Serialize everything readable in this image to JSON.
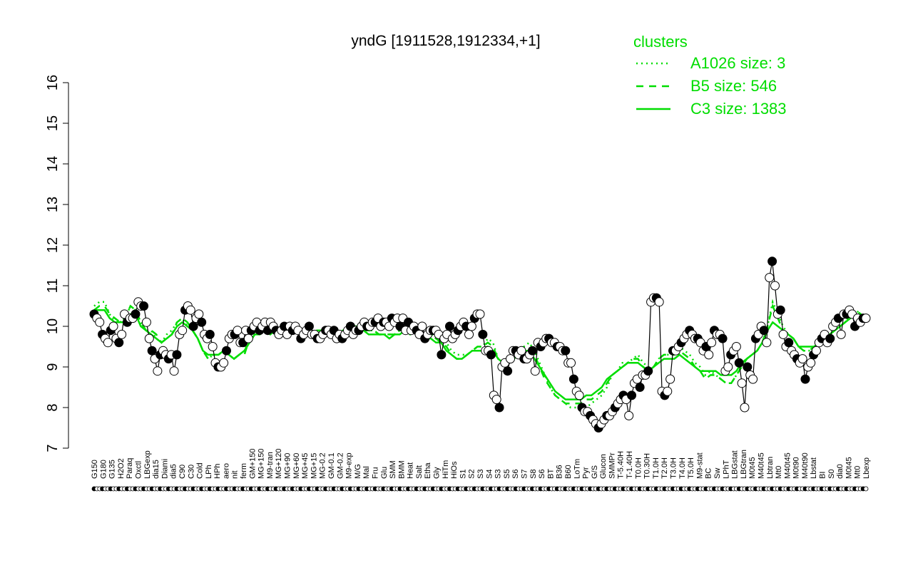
{
  "chart_data": {
    "type": "line",
    "title": "yndG [1911528,1912334,+1]",
    "xlabel": "",
    "ylabel": "",
    "ylim": [
      7,
      16
    ],
    "yticks": [
      7,
      8,
      9,
      10,
      11,
      12,
      13,
      14,
      15,
      16
    ],
    "grid": false,
    "legend": {
      "title": "clusters",
      "placement": "top-right",
      "entries": [
        {
          "label": "A1026 size: 3",
          "style": "dotted"
        },
        {
          "label": "B5 size: 546",
          "style": "dashed"
        },
        {
          "label": "C3 size: 1383",
          "style": "solid"
        }
      ]
    },
    "x_tick_labels": [
      "G150",
      "G180",
      "G135",
      "H2O2",
      "Paraq",
      "Oxctl",
      "LBGexp",
      "dia15",
      "Diami",
      "dia5",
      "C90",
      "C30",
      "Cold",
      "LPh",
      "HPh",
      "aero",
      "nit",
      "ferm",
      "GM+150",
      "MG+150",
      "M9-tran",
      "MG+120",
      "MG+90",
      "MG+60",
      "MG+45",
      "MG+15",
      "MG-0.2",
      "GM-0.1",
      "GM-0.2",
      "M9-exp",
      "M/G",
      "Mal",
      "Fru",
      "Glu",
      "SMM",
      "BMM",
      "Heat",
      "Salt",
      "Etha",
      "Gly",
      "HiTm",
      "HiOs",
      "S1",
      "S2",
      "S3",
      "S4",
      "S3",
      "S5",
      "S6",
      "S7",
      "S8",
      "S6",
      "BT",
      "B36",
      "B60",
      "LoTm",
      "Pyr",
      "G/S",
      "Glucon",
      "SMMPr",
      "T-5.40H",
      "T-1.40H",
      "T0.0H",
      "T0.30H",
      "T1.0H",
      "T2.0H",
      "T3.0H",
      "T4.0H",
      "T5.0H",
      "M9-stat",
      "BC",
      "Sw",
      "LPhT",
      "LBGstat",
      "LBGtran",
      "M0t45",
      "M40t45",
      "Lbtran",
      "Mt0",
      "M40t45",
      "M0t90",
      "M40t90",
      "Lbstat",
      "BI",
      "S0",
      "dia0",
      "M0t45",
      "Mt0",
      "Lbexp"
    ],
    "colors": {
      "series_line": "#000000",
      "open_marker": "#ffffff",
      "filled_marker": "#000000",
      "cluster": "#00dd00"
    },
    "series": [
      {
        "name": "",
        "values": [
          10.3,
          10.2,
          10.1,
          9.8,
          9.7,
          9.6,
          9.9,
          10.0,
          9.7,
          9.6,
          9.8,
          10.3,
          10.1,
          10.2,
          10.2,
          10.3,
          10.6,
          10.5,
          10.5,
          10.1,
          9.7,
          9.4,
          9.2,
          8.9,
          9.3,
          9.4,
          9.3,
          9.2,
          9.3,
          8.9,
          9.3,
          9.8,
          9.9,
          10.4,
          10.5,
          10.4,
          10.0,
          10.2,
          10.3,
          10.1,
          9.8,
          9.7,
          9.8,
          9.5,
          9.1,
          9.0,
          9.0,
          9.1,
          9.4,
          9.7,
          9.8,
          9.8,
          9.9,
          9.6,
          9.6,
          9.9,
          9.7,
          9.9,
          10.0,
          10.1,
          9.9,
          10.0,
          10.1,
          9.9,
          10.1,
          10.0,
          9.9,
          9.8,
          9.9,
          10.0,
          9.8,
          10.0,
          9.9,
          10.0,
          9.9,
          9.7,
          9.8,
          9.9,
          10.0,
          9.8,
          9.8,
          9.7,
          9.7,
          9.8,
          9.9,
          9.9,
          9.8,
          9.9,
          9.7,
          9.8,
          9.7,
          9.8,
          9.9,
          10.0,
          9.8,
          9.9,
          9.9,
          10.0,
          10.1,
          10.0,
          10.0,
          10.1,
          10.1,
          10.2,
          10.0,
          10.1,
          10.1,
          10.0,
          10.2,
          10.1,
          10.2,
          10.0,
          10.2,
          9.9,
          10.1,
          9.9,
          10.0,
          9.9,
          9.8,
          10.0,
          9.7,
          9.8,
          9.9,
          9.9,
          9.9,
          9.8,
          9.3,
          9.7,
          9.8,
          10.0,
          9.7,
          9.8,
          9.9,
          10.0,
          10.1,
          10.0,
          9.8,
          10.0,
          10.2,
          10.3,
          10.3,
          9.8,
          9.4,
          9.4,
          9.3,
          8.3,
          8.2,
          8.0,
          9.0,
          9.1,
          8.9,
          9.2,
          9.4,
          9.4,
          9.3,
          9.4,
          9.2,
          9.2,
          9.3,
          9.4,
          8.9,
          9.6,
          9.5,
          9.6,
          9.7,
          9.7,
          9.6,
          9.6,
          9.5,
          9.5,
          9.4,
          9.4,
          9.1,
          9.1,
          8.7,
          8.4,
          8.3,
          8.0,
          7.9,
          7.9,
          7.8,
          7.7,
          7.6,
          7.5,
          7.6,
          7.7,
          7.8,
          7.8,
          7.9,
          8.0,
          8.1,
          8.2,
          8.3,
          8.2,
          7.8,
          8.3,
          8.6,
          8.7,
          8.5,
          8.8,
          8.8,
          8.9,
          10.6,
          10.7,
          10.7,
          10.6,
          8.4,
          8.3,
          8.4,
          8.7,
          9.4,
          9.4,
          9.5,
          9.6,
          9.7,
          9.8,
          9.9,
          9.8,
          9.7,
          9.7,
          9.6,
          9.4,
          9.5,
          9.3,
          9.6,
          9.9,
          9.8,
          9.8,
          9.7,
          8.9,
          9.0,
          9.3,
          9.4,
          9.5,
          9.1,
          8.6,
          8.0,
          9.0,
          8.8,
          8.7,
          9.7,
          9.8,
          10.0,
          9.9,
          9.6,
          11.2,
          11.6,
          11.0,
          10.3,
          10.4,
          9.8,
          9.5,
          9.6,
          9.4,
          9.3,
          9.2,
          9.1,
          9.2,
          8.7,
          9.0,
          9.1,
          9.3,
          9.4,
          9.6,
          9.7,
          9.8,
          9.6,
          9.7,
          10.0,
          10.1,
          10.2,
          9.8,
          10.3,
          10.3,
          10.4,
          10.3,
          10.0,
          10.2,
          10.1,
          10.2,
          10.2
        ]
      }
    ],
    "clusters": [
      {
        "name": "A1026 size: 3",
        "style": "dotted",
        "values": [
          10.5,
          10.6,
          10.6,
          10.3,
          10.1,
          10.1,
          10.2,
          10.5,
          10.4,
          10.1,
          9.9,
          9.9,
          9.7,
          9.6,
          9.8,
          9.9,
          10.1,
          10.2,
          10.0,
          9.9,
          9.7,
          9.4,
          9.2,
          9.3,
          9.3,
          9.4,
          9.3,
          9.2,
          9.3,
          9.4,
          9.7,
          9.9,
          9.9,
          10.0,
          9.9,
          9.9,
          9.9,
          9.9,
          10.0,
          9.9,
          9.9,
          9.8,
          9.8,
          9.9,
          9.9,
          9.9,
          9.8,
          9.8,
          9.9,
          9.9,
          10.0,
          10.0,
          10.0,
          9.9,
          9.9,
          9.8,
          9.8,
          9.8,
          9.8,
          9.9,
          9.9,
          9.9,
          9.9,
          9.9,
          9.8,
          9.8,
          9.7,
          9.7,
          9.6,
          9.4,
          9.3,
          9.3,
          9.3,
          9.4,
          9.5,
          9.5,
          9.7,
          9.6,
          9.2,
          9.1,
          9.1,
          9.3,
          9.4,
          9.5,
          9.6,
          9.4,
          9.1,
          8.8,
          8.5,
          8.3,
          8.2,
          8.1,
          8.0,
          8.0,
          8.0,
          8.0,
          8.1,
          8.2,
          8.3,
          8.5,
          8.8,
          8.9,
          9.1,
          9.1,
          9.2,
          9.3,
          9.1,
          9.0,
          9.0,
          9.2,
          9.3,
          9.3,
          9.3,
          9.5,
          9.4,
          9.3,
          9.1,
          9.0,
          8.8,
          8.9,
          8.8,
          8.7,
          8.6,
          8.6,
          8.8,
          9.0,
          9.2,
          9.3,
          9.4,
          9.6,
          10.0,
          10.6,
          10.3,
          10.0,
          9.8,
          9.7,
          9.5,
          9.4,
          9.4,
          9.5,
          9.6,
          9.7,
          9.8,
          9.9,
          10.0,
          10.1,
          10.3,
          10.4,
          10.3,
          10.2
        ]
      },
      {
        "name": "B5 size: 546",
        "style": "dashed",
        "values": [
          10.4,
          10.5,
          10.5,
          10.3,
          10.2,
          10.1,
          10.2,
          10.5,
          10.4,
          10.1,
          9.9,
          9.9,
          9.8,
          9.6,
          9.7,
          9.8,
          10.1,
          10.2,
          10.1,
          9.9,
          9.7,
          9.4,
          9.2,
          9.3,
          9.3,
          9.4,
          9.3,
          9.2,
          9.3,
          9.3,
          9.7,
          9.8,
          9.9,
          9.9,
          9.9,
          9.9,
          9.9,
          9.9,
          9.9,
          9.9,
          9.9,
          9.8,
          9.8,
          9.9,
          9.9,
          9.9,
          9.8,
          9.8,
          9.9,
          9.9,
          10.0,
          10.0,
          9.9,
          9.9,
          9.9,
          9.8,
          9.8,
          9.8,
          9.8,
          9.9,
          9.9,
          9.9,
          9.9,
          9.9,
          9.8,
          9.8,
          9.7,
          9.6,
          9.5,
          9.3,
          9.2,
          9.2,
          9.3,
          9.4,
          9.5,
          9.5,
          9.6,
          9.5,
          9.2,
          9.1,
          9.1,
          9.2,
          9.4,
          9.5,
          9.5,
          9.3,
          9.0,
          8.7,
          8.5,
          8.3,
          8.2,
          8.1,
          8.1,
          8.1,
          8.1,
          8.2,
          8.2,
          8.3,
          8.4,
          8.6,
          8.8,
          8.9,
          9.0,
          9.1,
          9.2,
          9.2,
          9.0,
          8.9,
          9.0,
          9.2,
          9.3,
          9.3,
          9.3,
          9.4,
          9.3,
          9.2,
          9.0,
          8.9,
          8.7,
          8.8,
          8.8,
          8.7,
          8.6,
          8.6,
          8.8,
          9.0,
          9.2,
          9.3,
          9.4,
          9.6,
          10.0,
          10.5,
          10.2,
          9.9,
          9.8,
          9.7,
          9.5,
          9.4,
          9.4,
          9.5,
          9.6,
          9.7,
          9.8,
          9.9,
          10.0,
          10.1,
          10.3,
          10.4,
          10.3,
          10.2
        ]
      },
      {
        "name": "C3 size: 1383",
        "style": "solid",
        "values": [
          10.4,
          10.4,
          10.4,
          10.2,
          10.1,
          10.1,
          10.1,
          10.3,
          10.3,
          10.0,
          9.9,
          9.8,
          9.7,
          9.6,
          9.7,
          9.8,
          10.0,
          10.1,
          10.0,
          9.9,
          9.7,
          9.4,
          9.3,
          9.3,
          9.3,
          9.4,
          9.3,
          9.2,
          9.3,
          9.4,
          9.6,
          9.8,
          9.8,
          9.9,
          9.8,
          9.9,
          9.9,
          9.8,
          9.9,
          9.9,
          9.8,
          9.8,
          9.8,
          9.8,
          9.9,
          9.8,
          9.8,
          9.8,
          9.8,
          9.9,
          9.9,
          9.9,
          9.9,
          9.8,
          9.8,
          9.8,
          9.8,
          9.7,
          9.8,
          9.8,
          9.9,
          9.8,
          9.9,
          9.8,
          9.7,
          9.7,
          9.6,
          9.6,
          9.4,
          9.3,
          9.2,
          9.2,
          9.3,
          9.4,
          9.4,
          9.4,
          9.5,
          9.4,
          9.2,
          9.1,
          9.1,
          9.2,
          9.3,
          9.4,
          9.4,
          9.2,
          9.0,
          8.8,
          8.6,
          8.4,
          8.3,
          8.2,
          8.2,
          8.2,
          8.2,
          8.3,
          8.3,
          8.4,
          8.5,
          8.7,
          8.8,
          8.9,
          9.0,
          9.1,
          9.1,
          9.1,
          9.0,
          8.9,
          9.0,
          9.1,
          9.2,
          9.2,
          9.2,
          9.3,
          9.2,
          9.1,
          9.0,
          8.9,
          8.9,
          8.9,
          8.9,
          8.8,
          8.8,
          8.8,
          8.9,
          9.1,
          9.2,
          9.3,
          9.4,
          9.6,
          9.9,
          10.1,
          10.0,
          9.9,
          9.8,
          9.7,
          9.5,
          9.5,
          9.5,
          9.5,
          9.6,
          9.7,
          9.8,
          9.9,
          10.0,
          10.1,
          10.2,
          10.3,
          10.2,
          10.2
        ]
      }
    ]
  }
}
